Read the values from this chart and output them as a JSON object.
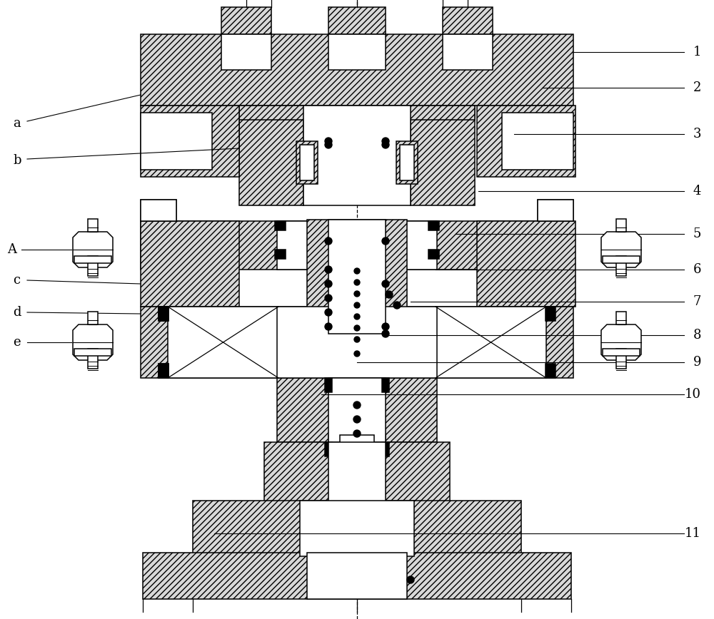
{
  "background_color": "#ffffff",
  "fig_width": 10.0,
  "fig_height": 8.68,
  "labels_left": [
    "a",
    "b",
    "A",
    "c",
    "d",
    "e"
  ],
  "labels_right": [
    "1",
    "2",
    "3",
    "4",
    "5",
    "6",
    "7",
    "8",
    "9",
    "10",
    "11"
  ],
  "label_font_size": 13,
  "hatch": "////",
  "lw": 1.1
}
